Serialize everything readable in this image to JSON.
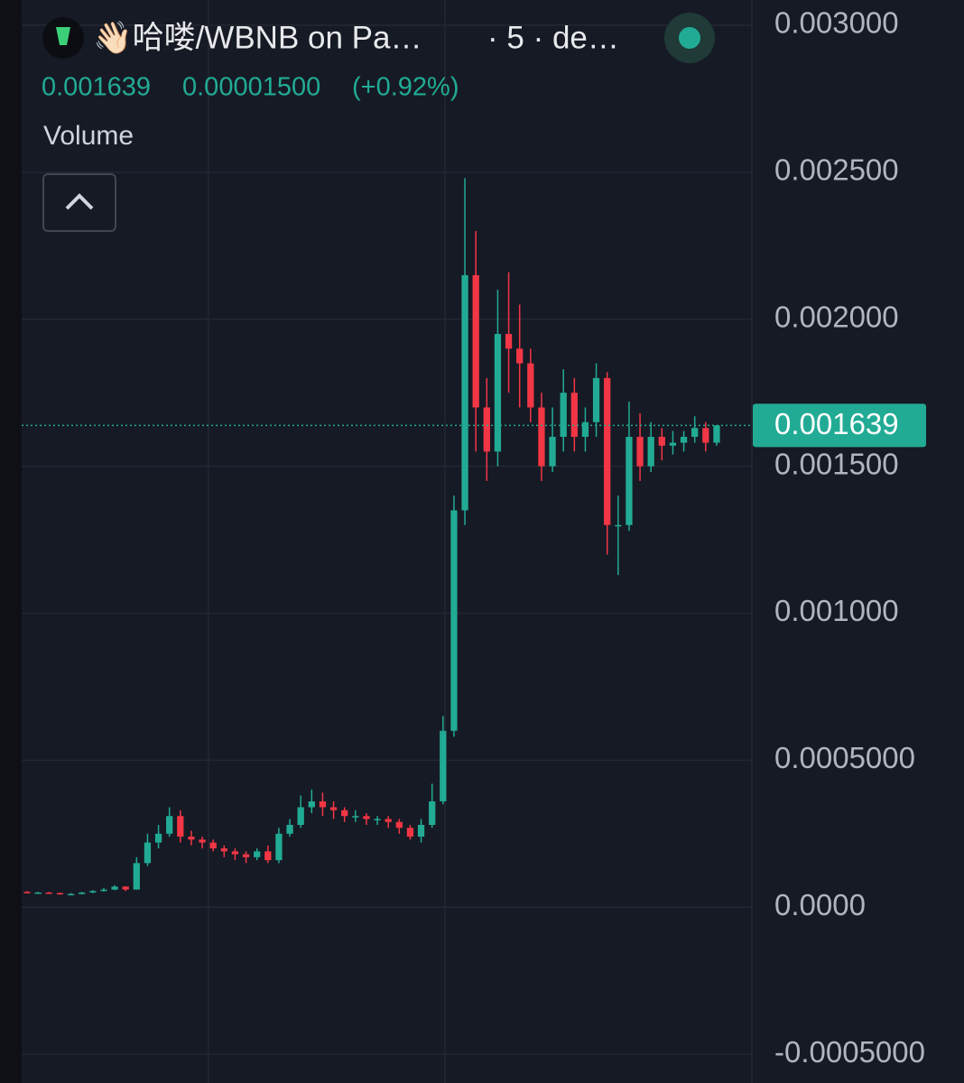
{
  "chart_data": {
    "type": "candlestick",
    "title": "👋🏻哈喽/WBNB on Pa…",
    "subtitle": "· 5 · de…",
    "price_text": "0.001639",
    "change_text": "0.00001500",
    "change_pct_text": "(+0.92%)",
    "indicator": "Volume",
    "last_price": 0.001639,
    "up_color": "#22ab94",
    "down_color": "#f23645",
    "grid": true,
    "ylim": [
      -0.000598,
      0.003086
    ],
    "yticks": [
      {
        "value": 0.003,
        "label": "0.003000"
      },
      {
        "value": 0.0025,
        "label": "0.002500"
      },
      {
        "value": 0.002,
        "label": "0.002000"
      },
      {
        "value": 0.0015,
        "label": "0.001500"
      },
      {
        "value": 0.001,
        "label": "0.001000"
      },
      {
        "value": 0.0005,
        "label": "0.0005000"
      },
      {
        "value": 0,
        "label": "0.0000"
      },
      {
        "value": -0.0005,
        "label": "-0.0005000"
      }
    ],
    "categories": [
      null,
      null,
      null,
      null,
      null,
      null,
      null,
      null,
      null,
      null,
      null,
      null,
      null,
      null,
      null,
      null,
      null,
      null,
      null,
      null,
      null,
      null,
      null,
      null,
      null,
      null,
      null,
      null,
      null,
      null,
      null,
      null,
      null,
      null,
      null,
      null,
      null,
      null,
      null,
      null,
      null,
      null,
      null,
      null,
      null,
      null,
      null,
      null,
      null,
      null,
      null,
      null,
      null,
      null,
      null,
      null,
      null,
      null,
      null,
      null,
      null,
      null,
      null,
      null
    ],
    "opens": [
      5.2e-05,
      5e-05,
      5e-05,
      4.8e-05,
      4.5e-05,
      4.5e-05,
      5e-05,
      5.5e-05,
      6e-05,
      7e-05,
      6e-05,
      0.00015,
      0.00022,
      0.00025,
      0.00031,
      0.00024,
      0.00023,
      0.00022,
      0.0002,
      0.00019,
      0.00018,
      0.00017,
      0.00019,
      0.00016,
      0.00025,
      0.00028,
      0.00034,
      0.00036,
      0.00034,
      0.00033,
      0.00031,
      0.00031,
      0.0003,
      0.0003,
      0.00029,
      0.00027,
      0.00024,
      0.00028,
      0.00036,
      0.0006,
      0.00135,
      0.00215,
      0.0017,
      0.00155,
      0.00195,
      0.0019,
      0.00185,
      0.0017,
      0.0015,
      0.0016,
      0.00175,
      0.0016,
      0.00165,
      0.0018,
      0.0013,
      0.0013,
      0.0016,
      0.0015,
      0.0016,
      0.00157,
      0.00158,
      0.0016,
      0.00163,
      0.00158
    ],
    "highs": [
      5.5e-05,
      5.2e-05,
      5.2e-05,
      5e-05,
      4.8e-05,
      5.2e-05,
      5.8e-05,
      6.5e-05,
      7.5e-05,
      7.2e-05,
      0.00017,
      0.00025,
      0.00028,
      0.00034,
      0.00033,
      0.00026,
      0.00024,
      0.00023,
      0.00021,
      0.0002,
      0.00019,
      0.0002,
      0.00021,
      0.00027,
      0.0003,
      0.00038,
      0.0004,
      0.00039,
      0.00036,
      0.00034,
      0.00033,
      0.00032,
      0.00031,
      0.00031,
      0.0003,
      0.00028,
      0.0003,
      0.00042,
      0.00065,
      0.0014,
      0.00248,
      0.0023,
      0.0018,
      0.0021,
      0.00216,
      0.00205,
      0.0019,
      0.00175,
      0.0017,
      0.00183,
      0.0018,
      0.0017,
      0.00185,
      0.00182,
      0.0014,
      0.00172,
      0.00168,
      0.00165,
      0.00163,
      0.00162,
      0.00162,
      0.00167,
      0.00165,
      0.00164
    ],
    "lows": [
      4.8e-05,
      4.7e-05,
      4.5e-05,
      4.3e-05,
      4.2e-05,
      4.4e-05,
      4.8e-05,
      5.3e-05,
      5.8e-05,
      5.5e-05,
      6e-05,
      0.00014,
      0.0002,
      0.00024,
      0.00022,
      0.00021,
      0.0002,
      0.00019,
      0.00017,
      0.00016,
      0.00015,
      0.00016,
      0.00015,
      0.00015,
      0.00024,
      0.00027,
      0.00032,
      0.00031,
      0.0003,
      0.00029,
      0.00029,
      0.00028,
      0.00028,
      0.00027,
      0.00025,
      0.00023,
      0.00022,
      0.00027,
      0.00035,
      0.00058,
      0.0013,
      0.00155,
      0.00145,
      0.0015,
      0.00175,
      0.0017,
      0.00165,
      0.00145,
      0.00148,
      0.00155,
      0.00155,
      0.00155,
      0.0016,
      0.0012,
      0.00113,
      0.00128,
      0.00145,
      0.00148,
      0.00152,
      0.00154,
      0.00155,
      0.00158,
      0.00155,
      0.00157
    ],
    "closes": [
      5e-05,
      5e-05,
      4.8e-05,
      4.5e-05,
      4.5e-05,
      5e-05,
      5.5e-05,
      6e-05,
      7e-05,
      6e-05,
      0.00015,
      0.00022,
      0.00025,
      0.00031,
      0.00024,
      0.00023,
      0.00022,
      0.0002,
      0.00019,
      0.00018,
      0.00017,
      0.00019,
      0.00016,
      0.00025,
      0.00028,
      0.00034,
      0.00036,
      0.00034,
      0.00033,
      0.00031,
      0.00031,
      0.0003,
      0.0003,
      0.00029,
      0.00027,
      0.00024,
      0.00028,
      0.00036,
      0.0006,
      0.00135,
      0.00215,
      0.0017,
      0.00155,
      0.00195,
      0.0019,
      0.00185,
      0.0017,
      0.0015,
      0.0016,
      0.00175,
      0.0016,
      0.00165,
      0.0018,
      0.0013,
      0.0013,
      0.0016,
      0.0015,
      0.0016,
      0.00157,
      0.00158,
      0.0016,
      0.00163,
      0.00158,
      0.001639
    ]
  }
}
